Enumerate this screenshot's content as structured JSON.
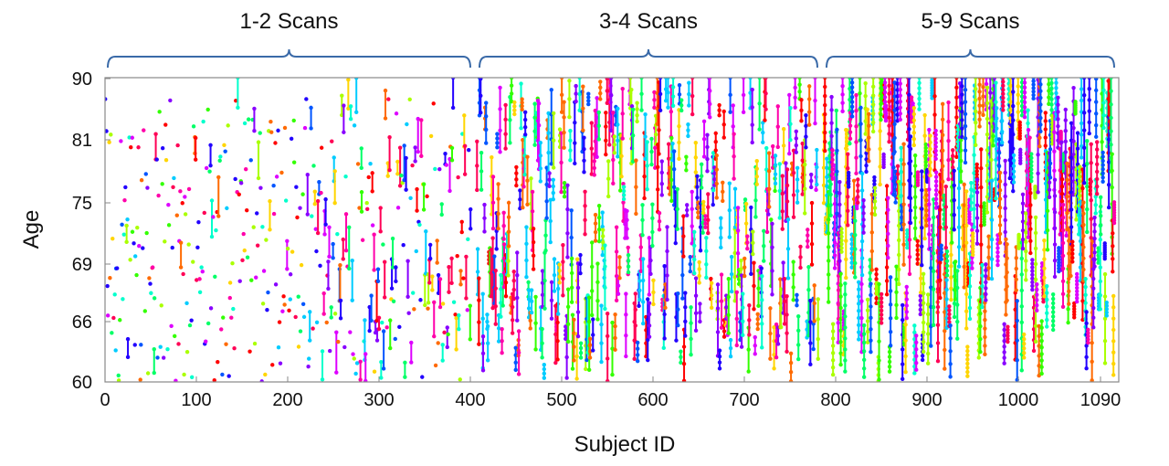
{
  "chart_data": {
    "type": "scatter",
    "xlabel": "Subject ID",
    "ylabel": "Age",
    "xlim": [
      0,
      1110
    ],
    "ylim": [
      60,
      90
    ],
    "x_ticks": [
      0,
      100,
      200,
      300,
      400,
      500,
      600,
      700,
      800,
      900,
      1000,
      1090
    ],
    "y_ticks": [
      60,
      66,
      69,
      75,
      81,
      90
    ],
    "grid": false,
    "groups": [
      {
        "label": "1-2 Scans",
        "x_range": [
          0,
          400
        ]
      },
      {
        "label": "3-4 Scans",
        "x_range": [
          407,
          780
        ]
      },
      {
        "label": "5-9 Scans",
        "x_range": [
          787,
          1105
        ]
      }
    ],
    "palette": [
      "#ff0000",
      "#ff6a00",
      "#ffd500",
      "#aaff00",
      "#33ff00",
      "#00ff66",
      "#00ffcc",
      "#00ccff",
      "#0055ff",
      "#2200ff",
      "#8800ff",
      "#dd00ff",
      "#ff00aa",
      "#ff0055"
    ],
    "series_note_colors": "each subject plotted in a distinct color; subjects with multiple scans connected by vertical lines"
  }
}
